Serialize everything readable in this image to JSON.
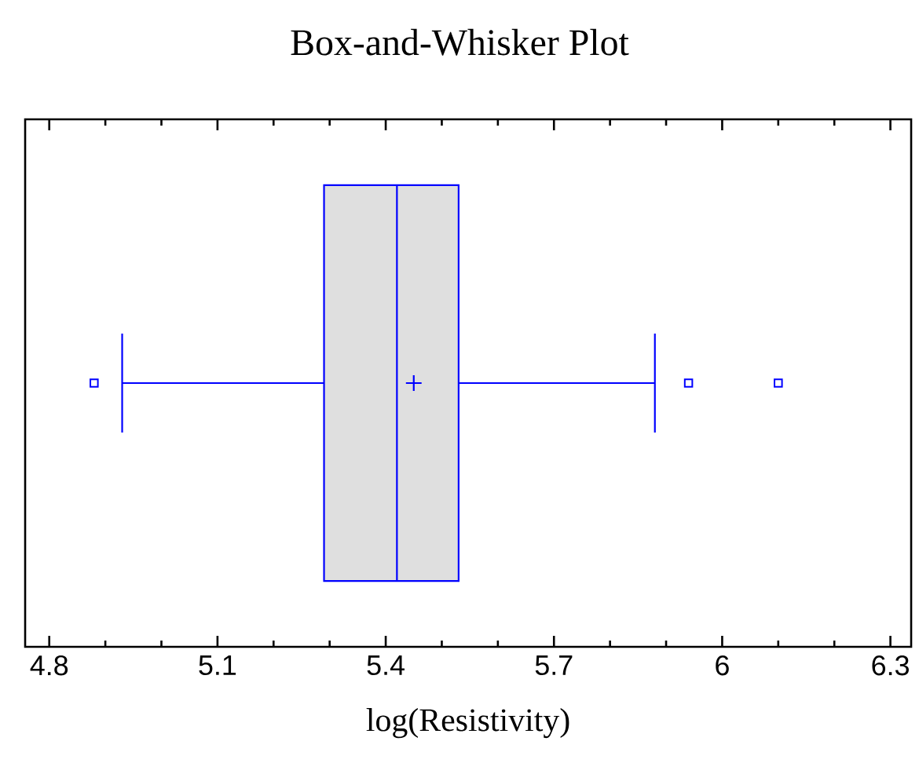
{
  "chart_data": {
    "type": "box",
    "title": "Box-and-Whisker Plot",
    "xlabel": "log(Resistivity)",
    "orientation": "horizontal",
    "categories": [
      null
    ],
    "color": "#0000ff",
    "boxes": [
      {
        "low": 4.93,
        "q1": 5.29,
        "median": 5.42,
        "q3": 5.53,
        "high": 5.88,
        "mean": 5.45,
        "outliers": [
          4.88,
          5.94,
          6.1
        ]
      }
    ],
    "xlim": [
      4.757,
      6.337
    ],
    "xticks": [
      4.8,
      5.1,
      5.4,
      5.7,
      6,
      6.3
    ]
  }
}
